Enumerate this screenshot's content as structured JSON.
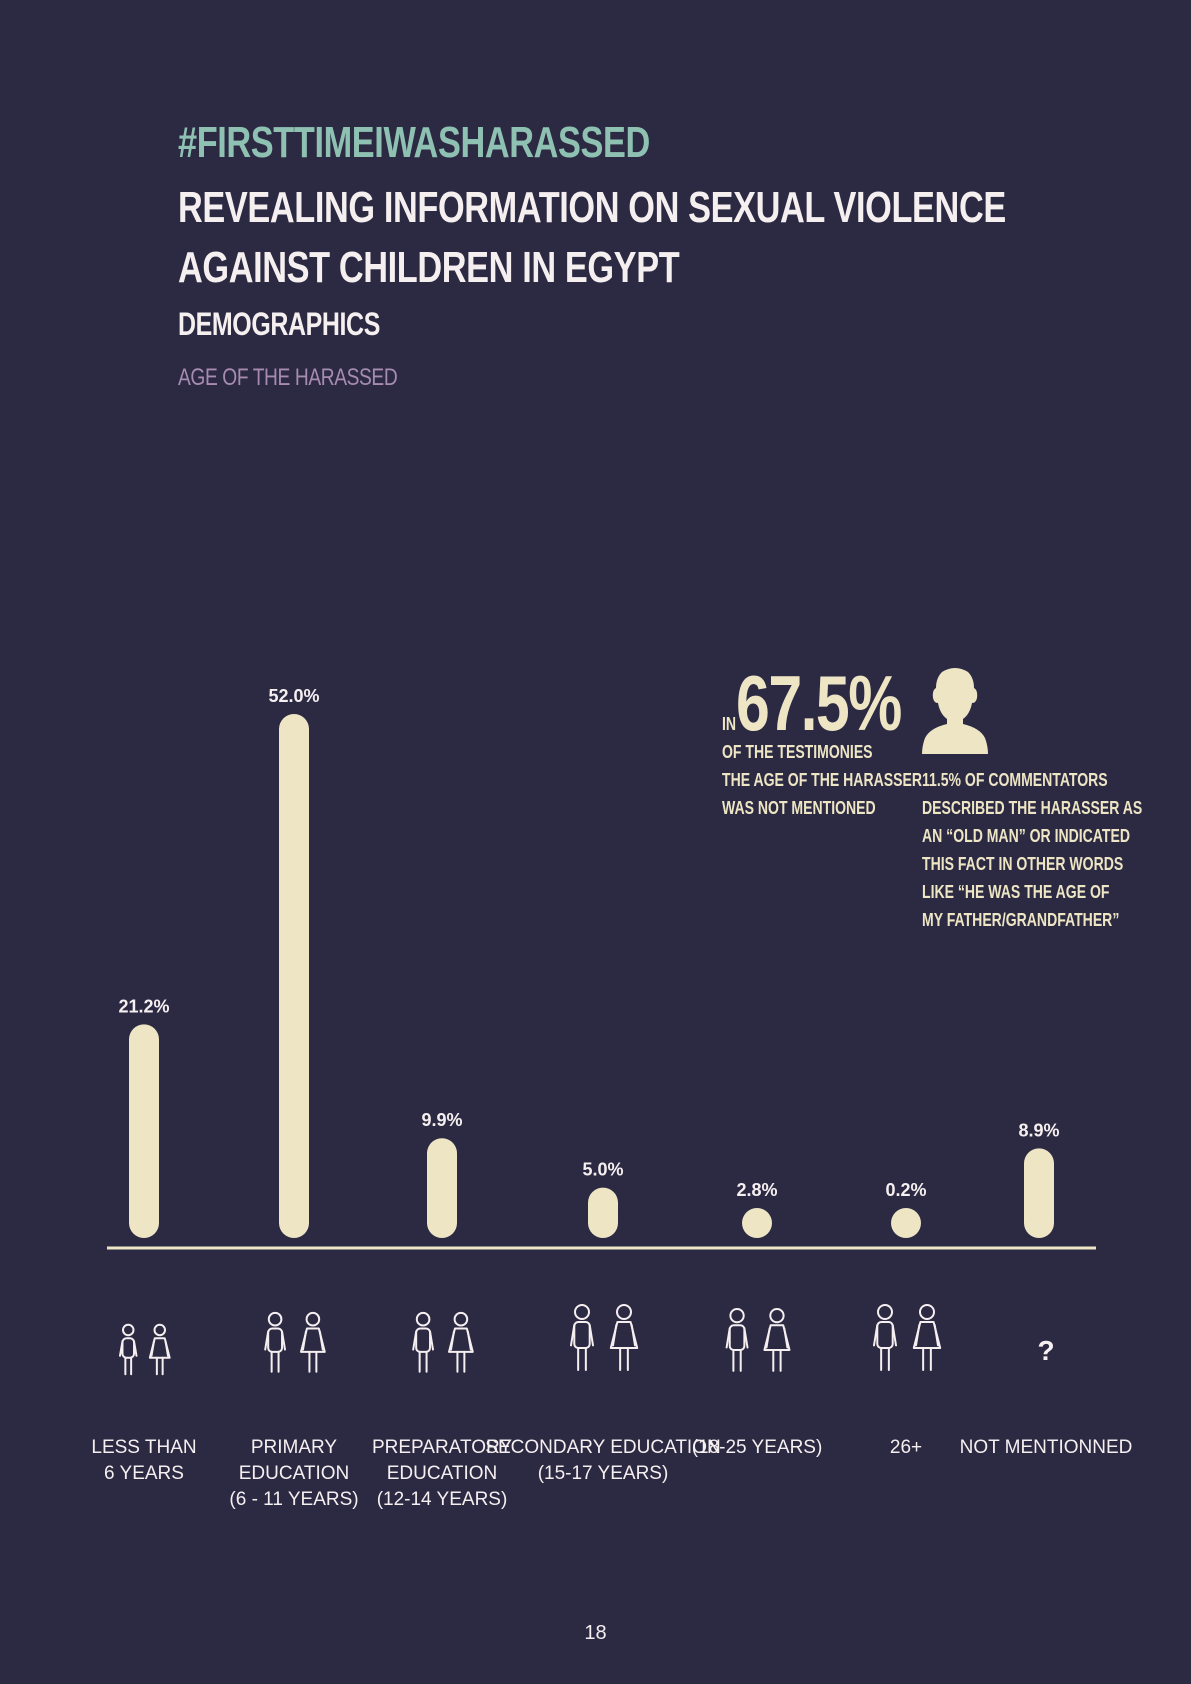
{
  "header": {
    "hashtag": "#FIRSTTIMEIWASHARASSED",
    "title": "REVEALING INFORMATION ON SEXUAL VIOLENCE AGAINST CHILDREN IN EGYPT",
    "section": "DEMOGRAPHICS",
    "subsection": "AGE OF THE HARASSED"
  },
  "colors": {
    "background": "#2c2a43",
    "bar": "#ede5c4",
    "hashtag": "#8fc1b3",
    "subsection": "#a78bb0",
    "text": "#f6eff0"
  },
  "chart_data": {
    "type": "bar",
    "categories": [
      [
        "LESS THAN",
        "6 YEARS"
      ],
      [
        "PRIMARY",
        "EDUCATION",
        "(6 - 11 YEARS)"
      ],
      [
        "PREPARATORY",
        "EDUCATION",
        "(12-14 YEARS)"
      ],
      [
        "SECONDARY EDUCATION",
        "(15-17 YEARS)"
      ],
      [
        "(18-25 YEARS)"
      ],
      [
        "26+"
      ],
      [
        "NOT MENTIONNED"
      ]
    ],
    "values": [
      21.2,
      52.0,
      9.9,
      5.0,
      2.8,
      0.2,
      8.9
    ],
    "value_labels": [
      "21.2%",
      "52.0%",
      "9.9%",
      "5.0%",
      "2.8%",
      "0.2%",
      "8.9%"
    ],
    "unit": "%",
    "icons": [
      "boy-girl-icon",
      "schoolboy-schoolgirl-icon",
      "uniform-boy-girl-icon",
      "teen-man-woman-icon",
      "young-man-woman-icon",
      "adult-man-woman-icon",
      "question-mark-icon"
    ],
    "unknown_symbol": "?",
    "ylim": [
      0,
      52.0
    ],
    "grid": false,
    "legend": "none"
  },
  "callouts": {
    "main": {
      "prefix": "IN",
      "value": "67.5%",
      "lines": [
        "OF THE TESTIMONIES",
        "THE AGE OF THE HARASSER",
        "WAS NOT MENTIONED"
      ]
    },
    "side": {
      "icon": "old-man-icon",
      "lines": [
        "11.5% OF COMMENTATORS",
        "DESCRIBED THE HARASSER AS",
        "AN “OLD MAN” OR INDICATED",
        "THIS FACT IN OTHER WORDS",
        "LIKE “HE WAS THE AGE OF",
        "MY FATHER/GRANDFATHER”"
      ]
    }
  },
  "page_number": "18"
}
